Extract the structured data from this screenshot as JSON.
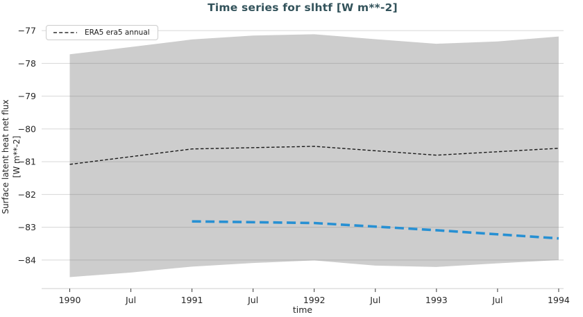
{
  "figure": {
    "background": "#ffffff"
  },
  "chart_data": {
    "type": "line",
    "title": "Time series for slhtf [W m**-2]",
    "xlabel": "time",
    "ylabel": {
      "line1": "Surface latent heat net flux",
      "line2": "[W m**-2]"
    },
    "xlim": [
      1989.77,
      1994.04
    ],
    "ylim": [
      -84.87,
      -76.7
    ],
    "grid": "horizontal",
    "legend_position": "upper-left",
    "x_ticks": [
      {
        "value": 1990,
        "label": "1990"
      },
      {
        "value": 1990.5,
        "label": "Jul"
      },
      {
        "value": 1991,
        "label": "1991"
      },
      {
        "value": 1991.5,
        "label": "Jul"
      },
      {
        "value": 1992,
        "label": "1992"
      },
      {
        "value": 1992.5,
        "label": "Jul"
      },
      {
        "value": 1993,
        "label": "1993"
      },
      {
        "value": 1993.5,
        "label": "Jul"
      },
      {
        "value": 1994,
        "label": "1994"
      }
    ],
    "y_ticks": [
      {
        "value": -77,
        "label": "−77"
      },
      {
        "value": -78,
        "label": "−78"
      },
      {
        "value": -79,
        "label": "−79"
      },
      {
        "value": -80,
        "label": "−80"
      },
      {
        "value": -81,
        "label": "−81"
      },
      {
        "value": -82,
        "label": "−82"
      },
      {
        "value": -83,
        "label": "−83"
      },
      {
        "value": -84,
        "label": "−84"
      }
    ],
    "band": {
      "color": "#cdcdcd",
      "x": [
        1990,
        1990.5,
        1991,
        1991.5,
        1992,
        1992.5,
        1993,
        1993.5,
        1994
      ],
      "upper": [
        -77.72,
        -77.5,
        -77.27,
        -77.15,
        -77.11,
        -77.26,
        -77.4,
        -77.33,
        -77.18
      ],
      "lower": [
        -84.52,
        -84.38,
        -84.2,
        -84.09,
        -84.01,
        -84.17,
        -84.21,
        -84.1,
        -84.0
      ]
    },
    "series": [
      {
        "name": "ERA5 era5 annual",
        "in_legend": true,
        "color": "#1a1a1a",
        "dash": [
          4.5,
          2.8
        ],
        "width": 1.4,
        "x": [
          1990,
          1991,
          1992,
          1993,
          1994
        ],
        "y": [
          -81.08,
          -80.61,
          -80.53,
          -80.8,
          -80.59
        ]
      },
      {
        "name": "",
        "in_legend": false,
        "color": "#2790d3",
        "dash": [
          13,
          6.5
        ],
        "width": 3.6,
        "x": [
          1991,
          1992,
          1993,
          1994
        ],
        "y": [
          -82.82,
          -82.87,
          -83.09,
          -83.34
        ]
      }
    ],
    "legend": {
      "entries": [
        {
          "label": "ERA5 era5 annual",
          "line_color": "#2b2b2b",
          "line_style": "dashed"
        }
      ]
    },
    "colors": {
      "title": "#33535b",
      "tick_label": "#262626",
      "axis_label": "#262626",
      "grid": "rgba(110,110,110,0.28)",
      "tick_mark": "#333333",
      "legend_border": "#cccccc"
    }
  }
}
